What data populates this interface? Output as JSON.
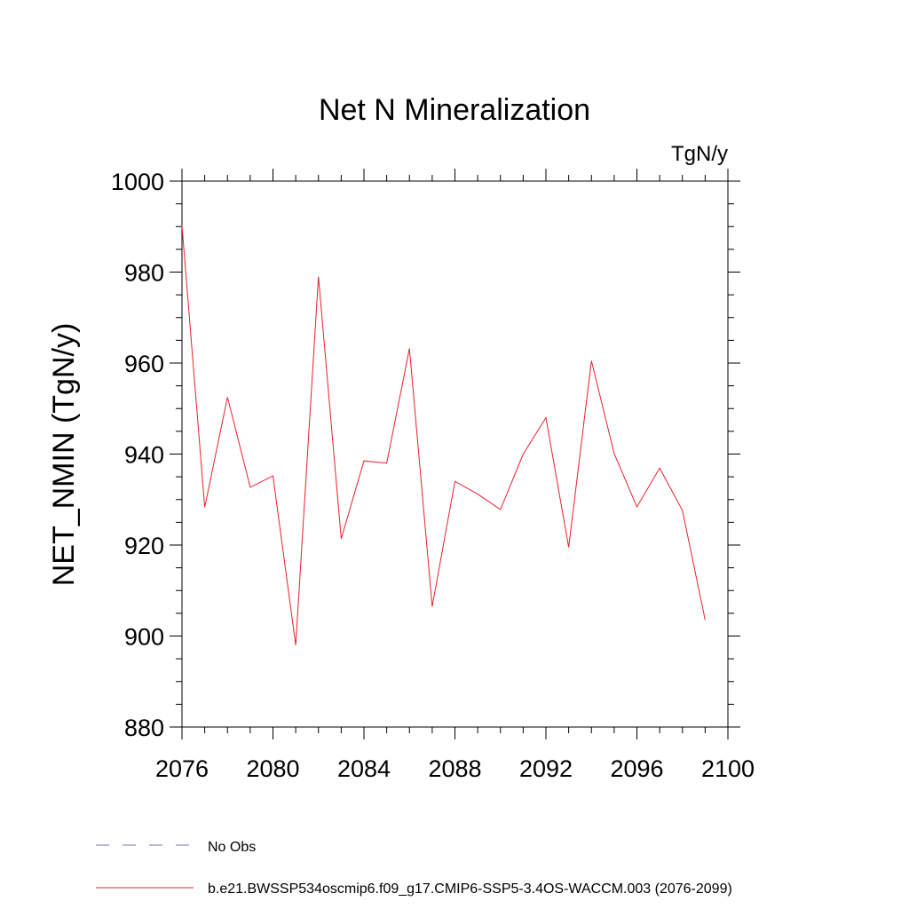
{
  "chart_data": {
    "type": "line",
    "title": "Net N Mineralization",
    "units": "TgN/y",
    "ylabel": "NET_NMIN  (TgN/y)",
    "xlabel": "",
    "xlim": [
      2076,
      2100
    ],
    "ylim": [
      880,
      1000
    ],
    "xticks": [
      2076,
      2080,
      2084,
      2088,
      2092,
      2096,
      2100
    ],
    "yticks": [
      880,
      900,
      920,
      940,
      960,
      980,
      1000
    ],
    "x_minor_step": 1,
    "y_minor_step": 5,
    "grid": false,
    "legend_position": "bottom-left",
    "series": [
      {
        "name": "b.e21.BWSSP534oscmip6.f09_g17.CMIP6-SSP5-3.4OS-WACCM.003 (2076-2099)",
        "color": "#e8202a",
        "style": "solid",
        "x": [
          2076,
          2077,
          2078,
          2079,
          2080,
          2081,
          2082,
          2083,
          2084,
          2085,
          2086,
          2087,
          2088,
          2089,
          2090,
          2091,
          2092,
          2093,
          2094,
          2095,
          2096,
          2097,
          2098,
          2099
        ],
        "y": [
          990.2,
          928.3,
          952.5,
          932.7,
          935.2,
          898.0,
          979.0,
          921.4,
          938.5,
          938.0,
          963.2,
          906.5,
          934.0,
          931.2,
          927.8,
          940.0,
          948.0,
          919.5,
          960.5,
          940.1,
          928.4,
          936.9,
          927.6,
          903.5
        ]
      }
    ],
    "legend": [
      {
        "label": "No Obs",
        "color": "#7b6fc2",
        "style": "dashed"
      },
      {
        "label": "b.e21.BWSSP534oscmip6.f09_g17.CMIP6-SSP5-3.4OS-WACCM.003 (2076-2099)",
        "color": "#e8202a",
        "style": "solid"
      }
    ]
  }
}
